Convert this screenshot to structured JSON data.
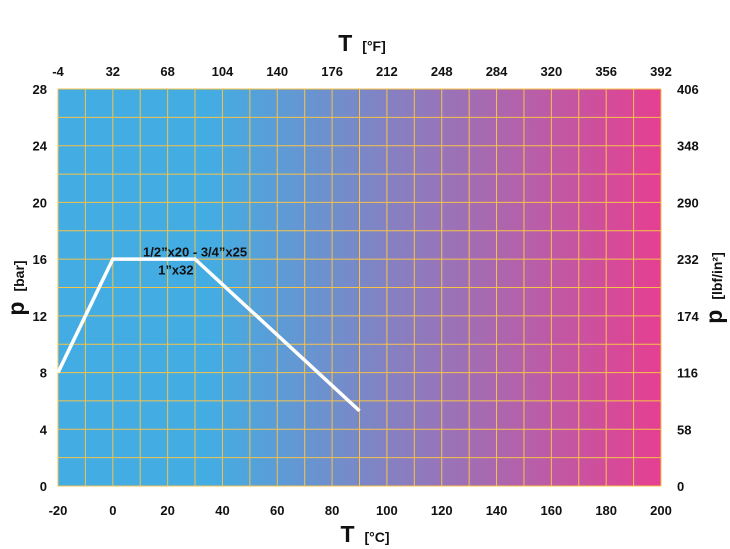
{
  "chart_data": {
    "type": "line",
    "title": "",
    "x_axis": {
      "label": "T",
      "unit": "[°C]",
      "range": [
        -20,
        200
      ],
      "ticks": [
        "-20",
        "0",
        "20",
        "40",
        "60",
        "80",
        "100",
        "120",
        "140",
        "160",
        "180",
        "200"
      ]
    },
    "x2_axis": {
      "label": "T",
      "unit": "[°F]",
      "range": [
        -4,
        392
      ],
      "ticks": [
        "-4",
        "32",
        "68",
        "104",
        "140",
        "176",
        "212",
        "248",
        "284",
        "320",
        "356",
        "392"
      ]
    },
    "y_axis": {
      "label": "p",
      "unit": "[bar]",
      "range": [
        0,
        28
      ],
      "ticks": [
        "0",
        "4",
        "8",
        "12",
        "16",
        "20",
        "24",
        "28"
      ]
    },
    "y2_axis": {
      "label": "p",
      "unit": "[lbf/in²]",
      "range": [
        0,
        406
      ],
      "ticks": [
        "0",
        "58",
        "116",
        "174",
        "232",
        "290",
        "348",
        "406"
      ]
    },
    "grid": true,
    "background_gradient": [
      "#43ade3",
      "#e63f91"
    ],
    "grid_color": "#f6c24a",
    "series": [
      {
        "color": "#ffffff",
        "x": [
          -20,
          0,
          30,
          90
        ],
        "y": [
          8,
          16,
          16,
          5.3
        ]
      }
    ],
    "annotations": [
      {
        "text": "1/2”x20 - 3/4”x25",
        "x": 30,
        "y": 16.2
      },
      {
        "text": "1”x32",
        "x": 23,
        "y": 14.9
      }
    ]
  }
}
